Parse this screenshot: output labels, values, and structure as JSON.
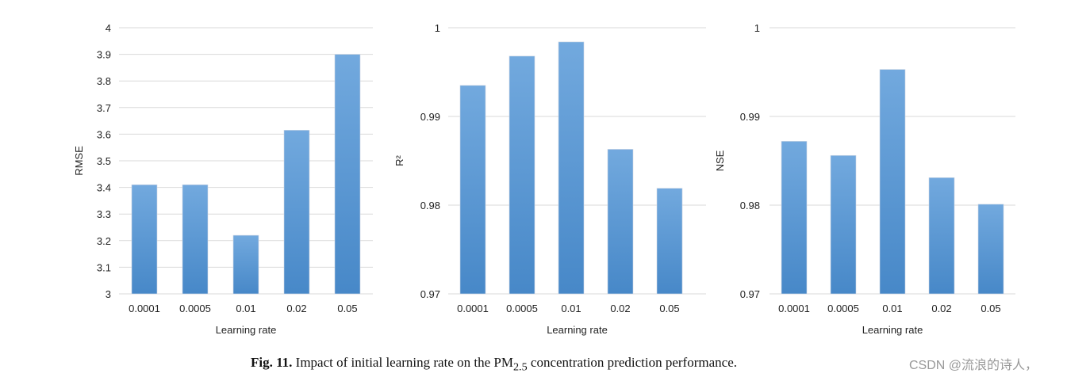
{
  "chart_data": [
    {
      "type": "bar",
      "categories": [
        "0.0001",
        "0.0005",
        "0.01",
        "0.02",
        "0.05"
      ],
      "values": [
        3.41,
        3.41,
        3.22,
        3.615,
        3.9
      ],
      "xlabel": "Learning rate",
      "ylabel": "RMSE",
      "ylim": [
        3,
        4
      ],
      "yticks": [
        "3",
        "3.1",
        "3.2",
        "3.3",
        "3.4",
        "3.5",
        "3.6",
        "3.7",
        "3.8",
        "3.9",
        "4"
      ],
      "grid": true
    },
    {
      "type": "bar",
      "categories": [
        "0.0001",
        "0.0005",
        "0.01",
        "0.02",
        "0.05"
      ],
      "values": [
        0.9935,
        0.9968,
        0.9984,
        0.9863,
        0.9819
      ],
      "xlabel": "Learning rate",
      "ylabel": "R²",
      "ylim": [
        0.97,
        1
      ],
      "yticks": [
        "0.97",
        "0.98",
        "0.99",
        "1"
      ],
      "grid": true
    },
    {
      "type": "bar",
      "categories": [
        "0.0001",
        "0.0005",
        "0.01",
        "0.02",
        "0.05"
      ],
      "values": [
        0.9872,
        0.9856,
        0.9953,
        0.9831,
        0.9801
      ],
      "xlabel": "Learning rate",
      "ylabel": "NSE",
      "ylim": [
        0.97,
        1
      ],
      "yticks": [
        "0.97",
        "0.98",
        "0.99",
        "1"
      ],
      "grid": true
    }
  ],
  "caption": {
    "label": "Fig. 11.",
    "text_before": "Impact of initial learning rate on the PM",
    "subscript": "2.5",
    "text_after": " concentration prediction performance."
  },
  "watermark": "CSDN @流浪的诗人，",
  "colors": {
    "bar_top": "#72a9de",
    "bar_bottom": "#4788c8",
    "grid": "#d9d9d9"
  }
}
